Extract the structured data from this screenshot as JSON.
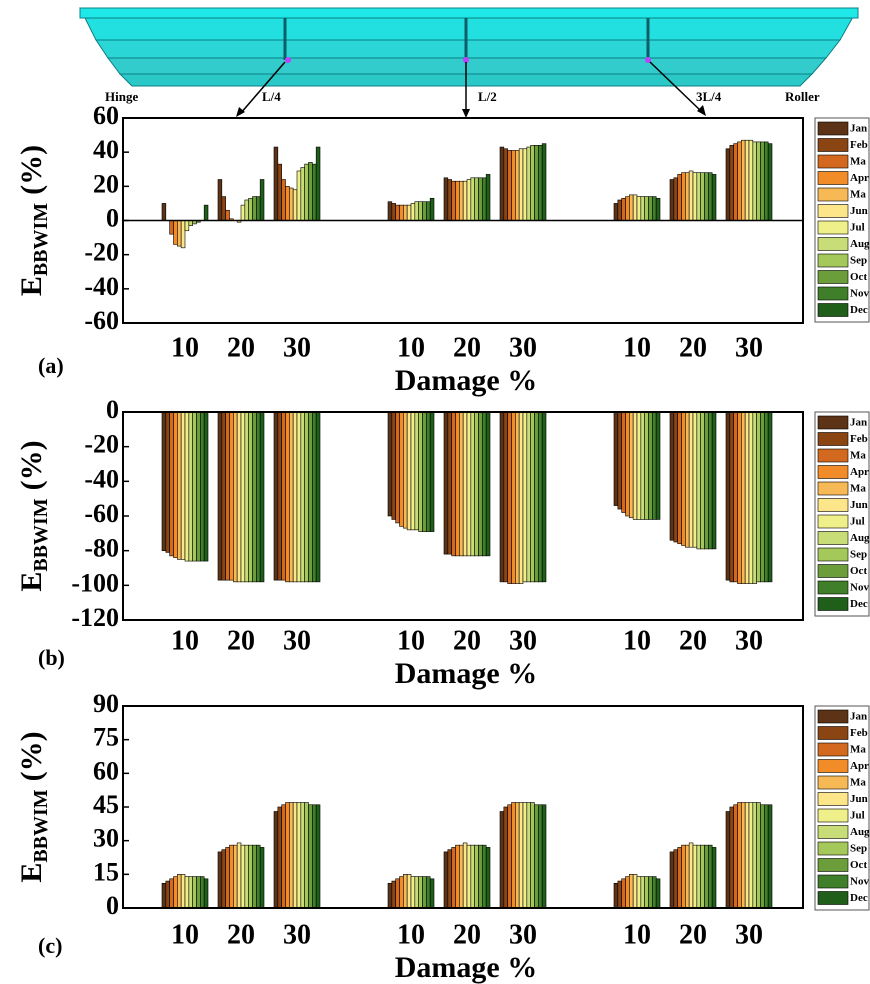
{
  "diagram": {
    "labels": [
      "Hinge",
      "L/4",
      "L/2",
      "3L/4",
      "Roller"
    ]
  },
  "chart_data": [
    {
      "type": "bar",
      "panel": "(a)",
      "ylabel": "E",
      "ylabel_sub": "BBWIM",
      "ylabel_unit": "(%)",
      "xlabel": "Damage %",
      "categories": [
        "10",
        "20",
        "30",
        "10",
        "20",
        "30",
        "10",
        "20",
        "30"
      ],
      "ylim": [
        -60,
        60
      ],
      "yticks": [
        -60,
        -40,
        -20,
        0,
        20,
        40,
        60
      ],
      "series": [
        {
          "name": "Jan",
          "color": "#5c3317",
          "values": [
            10,
            24,
            43,
            11,
            25,
            43,
            10,
            24,
            42
          ]
        },
        {
          "name": "Feb",
          "color": "#8b4513",
          "values": [
            0,
            14,
            33,
            10,
            24,
            42,
            12,
            25,
            44
          ]
        },
        {
          "name": "Ma",
          "color": "#d2691e",
          "values": [
            -8,
            6,
            24,
            9,
            23,
            41,
            13,
            27,
            45
          ]
        },
        {
          "name": "Apr",
          "color": "#f28c28",
          "values": [
            -14,
            1,
            20,
            9,
            23,
            41,
            14,
            28,
            46
          ]
        },
        {
          "name": "Ma",
          "color": "#f7b955",
          "values": [
            -15,
            0,
            19,
            9,
            23,
            41,
            15,
            28,
            47
          ]
        },
        {
          "name": "Jun",
          "color": "#fde68a",
          "values": [
            -16,
            -1,
            18,
            9,
            23,
            42,
            15,
            29,
            47
          ]
        },
        {
          "name": "Jul",
          "color": "#f0f08a",
          "values": [
            -6,
            9,
            29,
            10,
            24,
            42,
            14,
            28,
            47
          ]
        },
        {
          "name": "Aug",
          "color": "#c8dc78",
          "values": [
            -3,
            12,
            31,
            11,
            25,
            43,
            14,
            28,
            46
          ]
        },
        {
          "name": "Sep",
          "color": "#a5c85a",
          "values": [
            -2,
            13,
            33,
            11,
            25,
            44,
            14,
            28,
            46
          ]
        },
        {
          "name": "Oct",
          "color": "#6b9e3a",
          "values": [
            -1,
            14,
            34,
            11,
            25,
            44,
            14,
            28,
            46
          ]
        },
        {
          "name": "Nov",
          "color": "#3f7f2a",
          "values": [
            0,
            14,
            33,
            11,
            25,
            44,
            14,
            28,
            46
          ]
        },
        {
          "name": "Dec",
          "color": "#1f5f1a",
          "values": [
            9,
            24,
            43,
            13,
            27,
            45,
            13,
            27,
            45
          ]
        }
      ]
    },
    {
      "type": "bar",
      "panel": "(b)",
      "ylabel": "E",
      "ylabel_sub": "BBWIM",
      "ylabel_unit": "(%)",
      "xlabel": "Damage %",
      "categories": [
        "10",
        "20",
        "30",
        "10",
        "20",
        "30",
        "10",
        "20",
        "30"
      ],
      "ylim": [
        -120,
        0
      ],
      "yticks": [
        -120,
        -100,
        -80,
        -60,
        -40,
        -20,
        0
      ],
      "series": [
        {
          "name": "Jan",
          "color": "#5c3317",
          "values": [
            -80,
            -97,
            -97,
            -60,
            -82,
            -98,
            -54,
            -74,
            -97
          ]
        },
        {
          "name": "Feb",
          "color": "#8b4513",
          "values": [
            -81,
            -97,
            -97,
            -62,
            -82,
            -98,
            -56,
            -75,
            -98
          ]
        },
        {
          "name": "Ma",
          "color": "#d2691e",
          "values": [
            -83,
            -97,
            -97,
            -64,
            -83,
            -99,
            -58,
            -76,
            -98
          ]
        },
        {
          "name": "Apr",
          "color": "#f28c28",
          "values": [
            -84,
            -97,
            -98,
            -66,
            -83,
            -99,
            -60,
            -77,
            -99
          ]
        },
        {
          "name": "Ma",
          "color": "#f7b955",
          "values": [
            -85,
            -98,
            -98,
            -67,
            -83,
            -99,
            -61,
            -78,
            -99
          ]
        },
        {
          "name": "Jun",
          "color": "#fde68a",
          "values": [
            -85,
            -98,
            -98,
            -68,
            -83,
            -99,
            -62,
            -78,
            -99
          ]
        },
        {
          "name": "Jul",
          "color": "#f0f08a",
          "values": [
            -86,
            -98,
            -98,
            -68,
            -83,
            -98,
            -62,
            -78,
            -99
          ]
        },
        {
          "name": "Aug",
          "color": "#c8dc78",
          "values": [
            -86,
            -98,
            -98,
            -68,
            -83,
            -98,
            -62,
            -79,
            -99
          ]
        },
        {
          "name": "Sep",
          "color": "#a5c85a",
          "values": [
            -86,
            -98,
            -98,
            -69,
            -83,
            -98,
            -62,
            -79,
            -98
          ]
        },
        {
          "name": "Oct",
          "color": "#6b9e3a",
          "values": [
            -86,
            -98,
            -98,
            -69,
            -83,
            -98,
            -62,
            -79,
            -98
          ]
        },
        {
          "name": "Nov",
          "color": "#3f7f2a",
          "values": [
            -86,
            -98,
            -98,
            -69,
            -83,
            -98,
            -62,
            -79,
            -98
          ]
        },
        {
          "name": "Dec",
          "color": "#1f5f1a",
          "values": [
            -86,
            -98,
            -98,
            -69,
            -83,
            -98,
            -62,
            -79,
            -98
          ]
        }
      ]
    },
    {
      "type": "bar",
      "panel": "(c)",
      "ylabel": "E",
      "ylabel_sub": "BBWIM",
      "ylabel_unit": "(%)",
      "xlabel": "Damage %",
      "categories": [
        "10",
        "20",
        "30",
        "10",
        "20",
        "30",
        "10",
        "20",
        "30"
      ],
      "ylim": [
        0,
        90
      ],
      "yticks": [
        0,
        15,
        30,
        45,
        60,
        75,
        90
      ],
      "series": [
        {
          "name": "Jan",
          "color": "#5c3317",
          "values": [
            11,
            25,
            43,
            11,
            25,
            43,
            11,
            25,
            43
          ]
        },
        {
          "name": "Feb",
          "color": "#8b4513",
          "values": [
            12,
            26,
            45,
            12,
            26,
            45,
            12,
            26,
            45
          ]
        },
        {
          "name": "Ma",
          "color": "#d2691e",
          "values": [
            13,
            27,
            46,
            13,
            27,
            46,
            13,
            27,
            46
          ]
        },
        {
          "name": "Apr",
          "color": "#f28c28",
          "values": [
            14,
            28,
            47,
            14,
            28,
            47,
            14,
            28,
            47
          ]
        },
        {
          "name": "Ma",
          "color": "#f7b955",
          "values": [
            15,
            28,
            47,
            15,
            28,
            47,
            15,
            28,
            47
          ]
        },
        {
          "name": "Jun",
          "color": "#fde68a",
          "values": [
            15,
            29,
            47,
            15,
            29,
            47,
            15,
            29,
            47
          ]
        },
        {
          "name": "Jul",
          "color": "#f0f08a",
          "values": [
            14,
            28,
            47,
            14,
            28,
            47,
            14,
            28,
            47
          ]
        },
        {
          "name": "Aug",
          "color": "#c8dc78",
          "values": [
            14,
            28,
            47,
            14,
            28,
            47,
            14,
            28,
            47
          ]
        },
        {
          "name": "Sep",
          "color": "#a5c85a",
          "values": [
            14,
            28,
            47,
            14,
            28,
            47,
            14,
            28,
            47
          ]
        },
        {
          "name": "Oct",
          "color": "#6b9e3a",
          "values": [
            14,
            28,
            46,
            14,
            28,
            46,
            14,
            28,
            46
          ]
        },
        {
          "name": "Nov",
          "color": "#3f7f2a",
          "values": [
            14,
            28,
            46,
            14,
            28,
            46,
            14,
            28,
            46
          ]
        },
        {
          "name": "Dec",
          "color": "#1f5f1a",
          "values": [
            13,
            27,
            46,
            13,
            27,
            46,
            13,
            27,
            46
          ]
        }
      ]
    }
  ]
}
